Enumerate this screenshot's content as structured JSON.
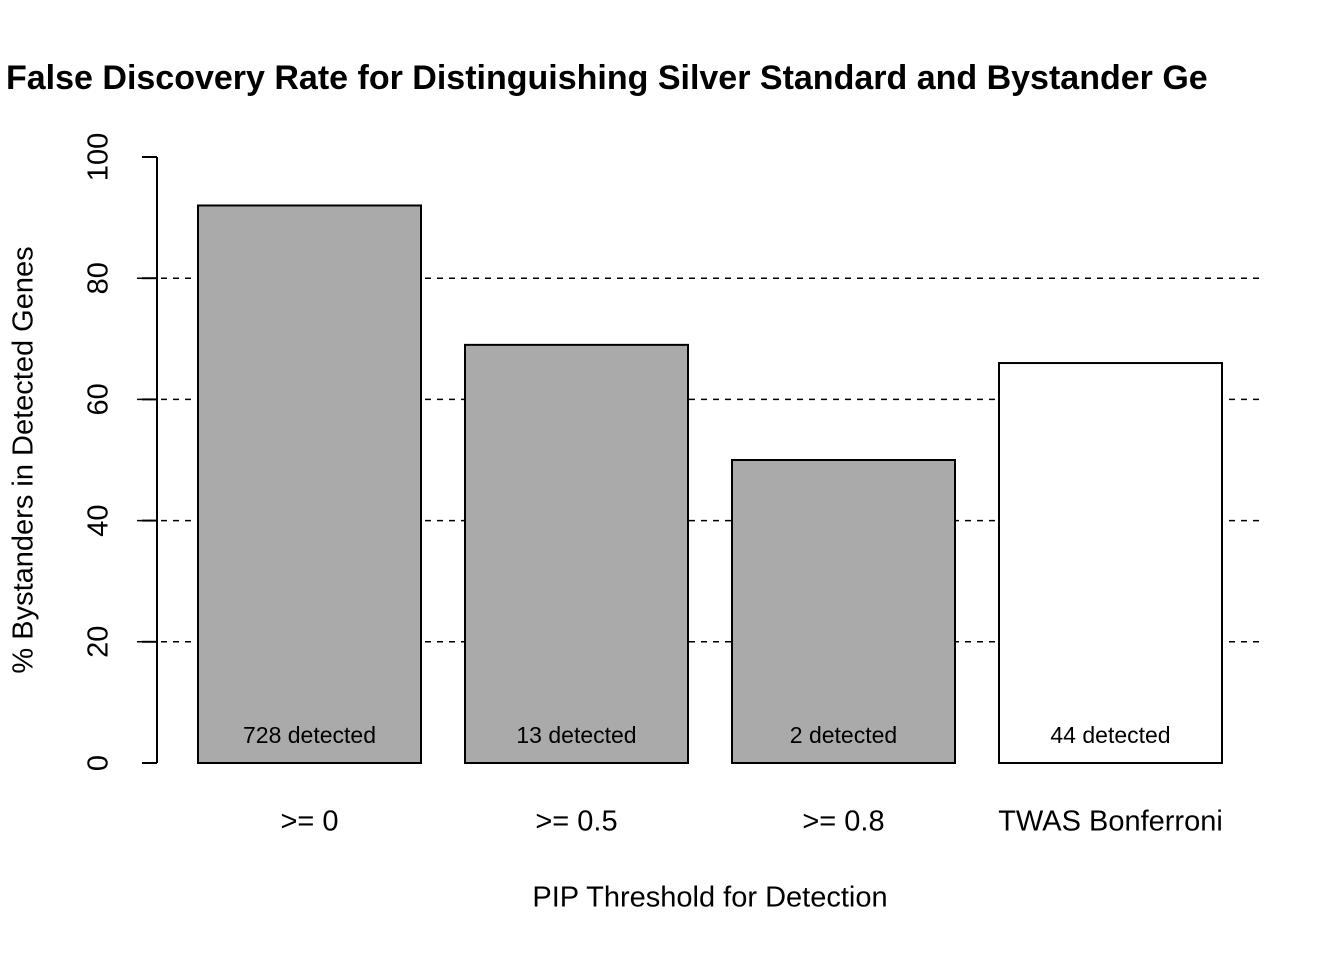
{
  "chart_data": {
    "type": "bar",
    "title": "False Discovery Rate for Distinguishing Silver Standard and Bystander Ge",
    "xlabel": "PIP Threshold for Detection",
    "ylabel": "% Bystanders in Detected Genes",
    "categories": [
      ">= 0",
      ">= 0.5",
      ">= 0.8",
      "TWAS Bonferroni"
    ],
    "values": [
      92,
      69,
      50,
      66
    ],
    "bar_labels": [
      "728 detected",
      "13 detected",
      "2 detected",
      "44 detected"
    ],
    "colors": [
      "#aaaaaa",
      "#aaaaaa",
      "#aaaaaa",
      "#ffffff"
    ],
    "ylim": [
      0,
      100
    ],
    "yticks": [
      0,
      20,
      40,
      60,
      80,
      100
    ],
    "grid": true
  }
}
